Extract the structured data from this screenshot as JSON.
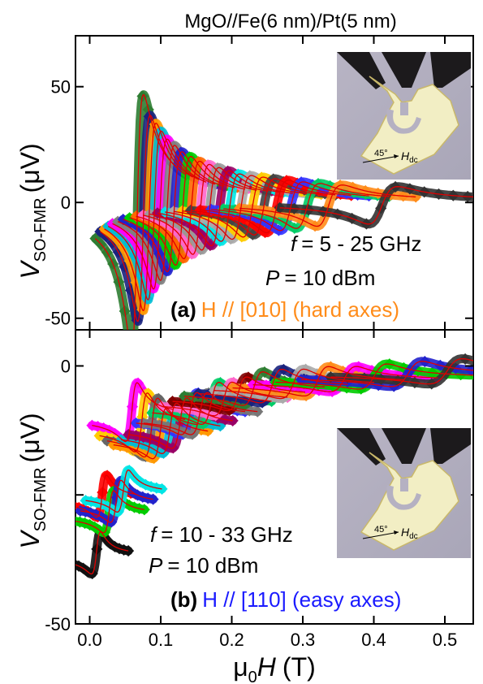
{
  "chart_data": [
    {
      "type": "line",
      "title": "MgO//Fe(6 nm)/Pt(5 nm)",
      "panel_letter": "(a)",
      "orientation_label": "H // [010] (hard axes)",
      "orientation_color": "#ff8c1a",
      "condition_f": "= 5 - 25 GHz",
      "condition_P": "= 10 dBm",
      "ylabel_main": "V",
      "ylabel_sub": "SO-FMR",
      "ylabel_unit": "(μV)",
      "inset_label_angle": "45°",
      "inset_label_field": "H",
      "inset_label_sub": "dc",
      "xlim": [
        -0.02,
        0.54
      ],
      "ylim": [
        -55,
        72
      ],
      "yticks": [
        -50,
        0,
        50
      ],
      "ytick_labels": [
        "-50",
        "0",
        "50"
      ],
      "series": [
        {
          "f": 5,
          "h0": 0.066,
          "amp": 68,
          "color": "#2e7d32"
        },
        {
          "f": 6,
          "h0": 0.075,
          "amp": 55,
          "color": "#1a237e"
        },
        {
          "f": 7,
          "h0": 0.083,
          "amp": 50,
          "color": "#ff9800"
        },
        {
          "f": 8,
          "h0": 0.09,
          "amp": 45,
          "color": "#00bcd4"
        },
        {
          "f": 9,
          "h0": 0.098,
          "amp": 40,
          "color": "#ff00ff"
        },
        {
          "f": 10,
          "h0": 0.108,
          "amp": 36,
          "color": "#808080"
        },
        {
          "f": 11,
          "h0": 0.118,
          "amp": 32,
          "color": "#2222cc"
        },
        {
          "f": 12,
          "h0": 0.13,
          "amp": 29,
          "color": "#00cc00"
        },
        {
          "f": 13,
          "h0": 0.142,
          "amp": 26,
          "color": "#ff6600"
        },
        {
          "f": 14,
          "h0": 0.155,
          "amp": 24,
          "color": "#ff66cc"
        },
        {
          "f": 15,
          "h0": 0.168,
          "amp": 22,
          "color": "#999999"
        },
        {
          "f": 16,
          "h0": 0.182,
          "amp": 20,
          "color": "#990066"
        },
        {
          "f": 17,
          "h0": 0.196,
          "amp": 18,
          "color": "#00e5e5"
        },
        {
          "f": 18,
          "h0": 0.212,
          "amp": 17,
          "color": "#aaaaaa"
        },
        {
          "f": 19,
          "h0": 0.228,
          "amp": 16,
          "color": "#ffcc00"
        },
        {
          "f": 20,
          "h0": 0.244,
          "amp": 15,
          "color": "#444444"
        },
        {
          "f": 21,
          "h0": 0.262,
          "amp": 14,
          "color": "#ff0000"
        },
        {
          "f": 22,
          "h0": 0.282,
          "amp": 13,
          "color": "#3333ff"
        },
        {
          "f": 23,
          "h0": 0.305,
          "amp": 12,
          "color": "#00cc66"
        },
        {
          "f": 24,
          "h0": 0.335,
          "amp": 11,
          "color": "#ff8c1a"
        },
        {
          "f": 25,
          "h0": 0.41,
          "amp": 10,
          "color": "#333333"
        }
      ]
    },
    {
      "type": "line",
      "panel_letter": "(b)",
      "orientation_label": "H // [110] (easy axes)",
      "orientation_color": "#1a1aff",
      "condition_f": "= 10 - 33 GHz",
      "condition_P": "= 10 dBm",
      "ylabel_main": "V",
      "ylabel_sub": "SO-FMR",
      "ylabel_unit": "(μV)",
      "inset_label_angle": "45°",
      "inset_label_field": "H",
      "inset_label_sub": "dc",
      "xlabel_main": "μ",
      "xlabel_sub": "0",
      "xlabel_rest": "H",
      "xlabel_unit": "(T)",
      "xlim": [
        -0.02,
        0.54
      ],
      "ylim": [
        -50,
        7
      ],
      "yticks": [
        -50,
        -25,
        0
      ],
      "ytick_labels": [
        "-50",
        "",
        "0"
      ],
      "xticks": [
        0.0,
        0.1,
        0.2,
        0.3,
        0.4,
        0.5
      ],
      "xtick_labels": [
        "0.0",
        "0.1",
        "0.2",
        "0.3",
        "0.4",
        "0.5"
      ],
      "series": [
        {
          "f": 10,
          "h0": 0.01,
          "center": -37,
          "amp": 5,
          "color": "#111111"
        },
        {
          "f": 11,
          "h0": 0.018,
          "center": -26,
          "amp": 5,
          "color": "#ff0000"
        },
        {
          "f": 12,
          "h0": 0.028,
          "center": -29,
          "amp": 5,
          "color": "#00cc00"
        },
        {
          "f": 13,
          "h0": 0.038,
          "center": -27,
          "amp": 5,
          "color": "#2222cc"
        },
        {
          "f": 14,
          "h0": 0.048,
          "center": -25,
          "amp": 5,
          "color": "#00e5e5"
        },
        {
          "f": 15,
          "h0": 0.06,
          "center": -10,
          "amp": 7,
          "color": "#ff00ff"
        },
        {
          "f": 16,
          "h0": 0.074,
          "center": -12,
          "amp": 7,
          "color": "#ffcc00"
        },
        {
          "f": 17,
          "h0": 0.088,
          "center": -13,
          "amp": 7,
          "color": "#666666"
        },
        {
          "f": 18,
          "h0": 0.1,
          "center": -14,
          "amp": 6,
          "color": "#ff9800"
        },
        {
          "f": 19,
          "h0": 0.114,
          "center": -13,
          "amp": 6,
          "color": "#00bcd4"
        },
        {
          "f": 20,
          "h0": 0.128,
          "center": -12,
          "amp": 6,
          "color": "#990066"
        },
        {
          "f": 21,
          "h0": 0.142,
          "center": -10,
          "amp": 5,
          "color": "#3333ff"
        },
        {
          "f": 22,
          "h0": 0.156,
          "center": -10,
          "amp": 5,
          "color": "#777777"
        },
        {
          "f": 23,
          "h0": 0.172,
          "center": -8,
          "amp": 5,
          "color": "#00cc66"
        },
        {
          "f": 24,
          "h0": 0.19,
          "center": -7,
          "amp": 4,
          "color": "#ff66cc"
        },
        {
          "f": 25,
          "h0": 0.21,
          "center": -6,
          "amp": 4,
          "color": "#800000"
        },
        {
          "f": 26,
          "h0": 0.232,
          "center": -5,
          "amp": 4,
          "color": "#2e7d32"
        },
        {
          "f": 27,
          "h0": 0.258,
          "center": -4.5,
          "amp": 4,
          "color": "#1a237e"
        },
        {
          "f": 28,
          "h0": 0.288,
          "center": -4,
          "amp": 3.5,
          "color": "#aaaaaa"
        },
        {
          "f": 29,
          "h0": 0.322,
          "center": -3.5,
          "amp": 3.5,
          "color": "#ff8c1a"
        },
        {
          "f": 30,
          "h0": 0.36,
          "center": -3,
          "amp": 3,
          "color": "#ff00ff"
        },
        {
          "f": 31,
          "h0": 0.402,
          "center": -2.5,
          "amp": 3,
          "color": "#00cc00"
        },
        {
          "f": 32,
          "h0": 0.45,
          "center": -2,
          "amp": 3,
          "color": "#2222cc"
        },
        {
          "f": 33,
          "h0": 0.505,
          "center": -1.5,
          "amp": 3,
          "color": "#333333"
        }
      ]
    }
  ]
}
